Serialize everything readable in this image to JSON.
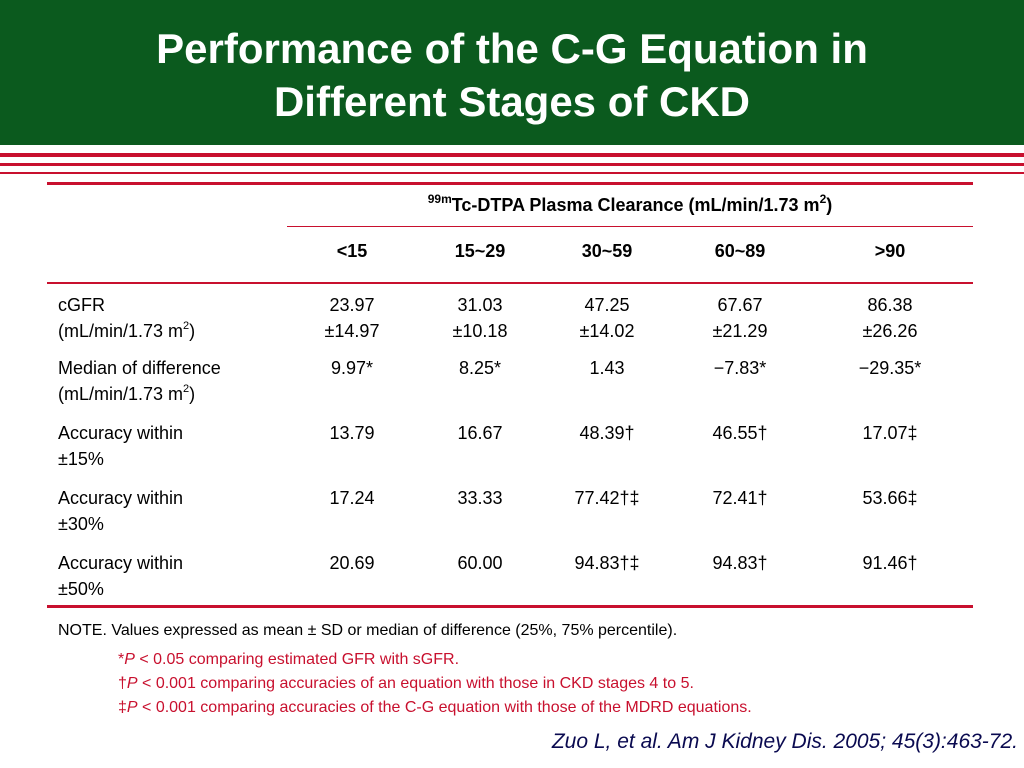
{
  "title_line1": "Performance of the C-G Equation in",
  "title_line2": "Different Stages of CKD",
  "table": {
    "header_sup": "99m",
    "header_text": "Tc-DTPA Plasma Clearance (mL/min/1.73 m",
    "header_sup2": "2",
    "header_close": ")",
    "columns": [
      "<15",
      "15~29",
      "30~59",
      "60~89",
      ">90"
    ],
    "rows": [
      {
        "label_line1": "cGFR",
        "label_line2": "(mL/min/1.73 m",
        "label_sup": "2",
        "label_close": ")",
        "values": [
          [
            "23.97",
            "±14.97"
          ],
          [
            "31.03",
            "±10.18"
          ],
          [
            "47.25",
            "±14.02"
          ],
          [
            "67.67",
            "±21.29"
          ],
          [
            "86.38",
            "±26.26"
          ]
        ]
      },
      {
        "label_line1": "Median of difference",
        "label_line2": "(mL/min/1.73 m",
        "label_sup": "2",
        "label_close": ")",
        "values": [
          [
            "9.97*"
          ],
          [
            "8.25*"
          ],
          [
            "1.43"
          ],
          [
            "−7.83*"
          ],
          [
            "−29.35*"
          ]
        ]
      },
      {
        "label_line1": "Accuracy within",
        "label_line2": "±15%",
        "values": [
          [
            "13.79"
          ],
          [
            "16.67"
          ],
          [
            "48.39†"
          ],
          [
            "46.55†"
          ],
          [
            "17.07‡"
          ]
        ]
      },
      {
        "label_line1": "Accuracy within",
        "label_line2": "±30%",
        "values": [
          [
            "17.24"
          ],
          [
            "33.33"
          ],
          [
            "77.42†‡"
          ],
          [
            "72.41†"
          ],
          [
            "53.66‡"
          ]
        ]
      },
      {
        "label_line1": "Accuracy within",
        "label_line2": "±50%",
        "values": [
          [
            "20.69"
          ],
          [
            "60.00"
          ],
          [
            "94.83†‡"
          ],
          [
            "94.83†"
          ],
          [
            "91.46†"
          ]
        ]
      }
    ]
  },
  "notes": {
    "note": "NOTE. Values expressed as mean ± SD or median of difference (25%, 75% percentile).",
    "fn1_sym": "*",
    "fn1_p": "P",
    "fn1_text": " < 0.05 comparing estimated GFR with sGFR.",
    "fn2_sym": "†",
    "fn2_p": "P",
    "fn2_text": " < 0.001 comparing accuracies of an equation with those in CKD stages 4 to 5.",
    "fn3_sym": "‡",
    "fn3_p": "P",
    "fn3_text": " < 0.001 comparing accuracies of the C-G equation with those of the MDRD equations."
  },
  "citation": "Zuo L, et al. Am J Kidney Dis. 2005; 45(3):463-72.",
  "colors": {
    "title_bg": "#0b5a1e",
    "accent_red": "#c8102e",
    "citation": "#0a0a50"
  }
}
